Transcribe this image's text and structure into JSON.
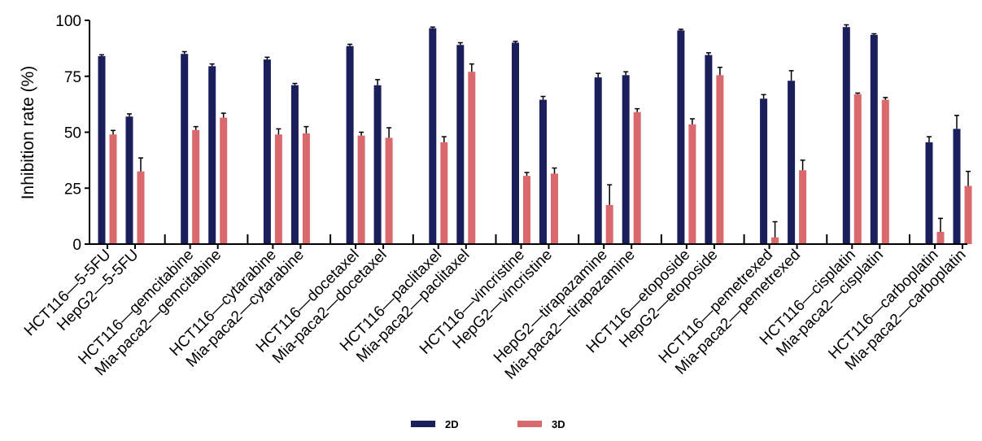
{
  "chart_data": {
    "type": "bar",
    "ylabel": "Inhibition rate (%)",
    "xlabel": "",
    "ylim": [
      0,
      100
    ],
    "yticks": [
      0,
      25,
      50,
      75,
      100
    ],
    "grid": false,
    "legend_position": "bottom-center",
    "categories": [
      "HCT116—5-5FU",
      "HepG2—5-5FU",
      "HCT116—gemcitabine",
      "Mia-paca2—gemcitabine",
      "HCT116—cytarabine",
      "Mia-paca2—cytarabine",
      "HCT116—docetaxel",
      "Mia-paca2—docetaxel",
      "HCT116—paclitaxel",
      "Mia-paca2—paclitaxel",
      "HCT116—vincristine",
      "HepG2—vincristine",
      "HepG2—tirapazamine",
      "Mia-paca2—tirapazamine",
      "HCT116—etoposide",
      "HepG2—etoposide",
      "HCT116—pemetrexed",
      "Mia-paca2—pemetrexed",
      "HCT116—cisplatin",
      "Mia-paca2—cisplatin",
      "HCT116—carboplatin",
      "Mia-paca2—carboplatin"
    ],
    "series": [
      {
        "name": "2D",
        "color": "#1a1f5c",
        "values": [
          84,
          57,
          85,
          79.5,
          82.5,
          71,
          88.5,
          71,
          96.5,
          89,
          90,
          64.5,
          74.5,
          75.5,
          95.5,
          84.5,
          65,
          73,
          97,
          93.5,
          45.5,
          51.5
        ],
        "errors": [
          0.6,
          1.2,
          1,
          1,
          1,
          0.8,
          0.8,
          2.5,
          0.5,
          1,
          0.6,
          1.5,
          1.8,
          1.5,
          0.5,
          1,
          1.8,
          4.5,
          1,
          0.5,
          2.5,
          6
        ]
      },
      {
        "name": "3D",
        "color": "#d9696c",
        "values": [
          49,
          32.5,
          51,
          56.5,
          49,
          49.5,
          48.5,
          47.5,
          45.5,
          77,
          30.5,
          31.5,
          17.5,
          59,
          53.5,
          75.5,
          3,
          33,
          67,
          64.5,
          5.5,
          26
        ],
        "errors": [
          1.8,
          6,
          1.5,
          2,
          2.5,
          3,
          1.5,
          4.5,
          2.5,
          3.5,
          1.5,
          2.5,
          9,
          1.5,
          2.5,
          3.5,
          7,
          4.5,
          0.5,
          1,
          6,
          6.5
        ]
      }
    ]
  }
}
